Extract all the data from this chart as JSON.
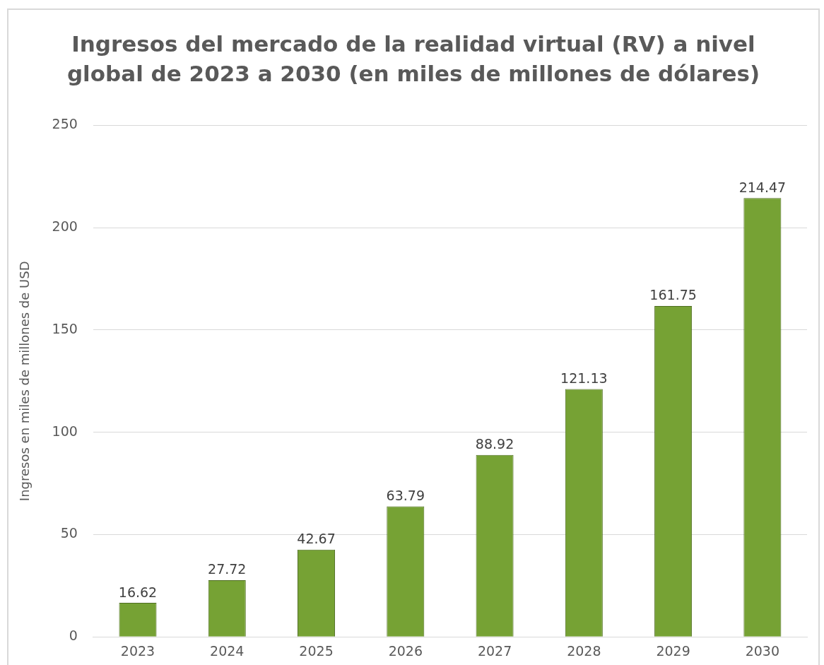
{
  "chart_data": {
    "type": "bar",
    "title": "Ingresos del mercado de la realidad virtual (RV) a nivel global de 2023 a 2030 (en miles de millones de dólares)",
    "ylabel": "Ingresos en miles de millones de USD",
    "categories": [
      "2023",
      "2024",
      "2025",
      "2026",
      "2027",
      "2028",
      "2029",
      "2030"
    ],
    "values": [
      16.62,
      27.72,
      42.67,
      63.79,
      88.92,
      121.13,
      161.75,
      214.47
    ],
    "color": "#76a234",
    "ylim": [
      0,
      250
    ],
    "yticks": [
      0,
      50,
      100,
      150,
      200,
      250
    ],
    "grid": "y",
    "legend": false,
    "data_labels": true
  }
}
